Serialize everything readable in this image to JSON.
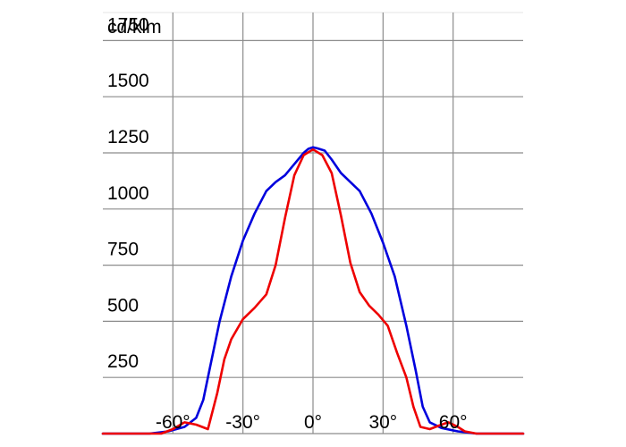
{
  "chart_data": {
    "type": "line",
    "title": "",
    "ylabel": "cd/klm",
    "xlabel": "",
    "xlim": [
      -90,
      90
    ],
    "ylim": [
      0,
      1875
    ],
    "x_ticks": [
      {
        "value": -60,
        "label": "-60°"
      },
      {
        "value": -30,
        "label": "-30°"
      },
      {
        "value": 0,
        "label": "0°"
      },
      {
        "value": 30,
        "label": "30°"
      },
      {
        "value": 60,
        "label": "60°"
      }
    ],
    "y_ticks": [
      {
        "value": 250,
        "label": "250"
      },
      {
        "value": 500,
        "label": "500"
      },
      {
        "value": 750,
        "label": "750"
      },
      {
        "value": 1000,
        "label": "1000"
      },
      {
        "value": 1250,
        "label": "1250"
      },
      {
        "value": 1500,
        "label": "1500"
      },
      {
        "value": 1750,
        "label": "1750"
      }
    ],
    "grid": true,
    "series": [
      {
        "color": "#0000dd",
        "points": [
          [
            -90,
            0
          ],
          [
            -70,
            0
          ],
          [
            -62,
            10
          ],
          [
            -55,
            30
          ],
          [
            -50,
            70
          ],
          [
            -47,
            150
          ],
          [
            -44,
            300
          ],
          [
            -40,
            500
          ],
          [
            -35,
            700
          ],
          [
            -30,
            860
          ],
          [
            -25,
            980
          ],
          [
            -20,
            1080
          ],
          [
            -16,
            1120
          ],
          [
            -12,
            1150
          ],
          [
            -8,
            1200
          ],
          [
            -4,
            1250
          ],
          [
            -2,
            1268
          ],
          [
            0,
            1275
          ],
          [
            2,
            1270
          ],
          [
            5,
            1260
          ],
          [
            8,
            1220
          ],
          [
            12,
            1160
          ],
          [
            16,
            1120
          ],
          [
            20,
            1080
          ],
          [
            25,
            980
          ],
          [
            30,
            850
          ],
          [
            35,
            700
          ],
          [
            40,
            480
          ],
          [
            44,
            280
          ],
          [
            47,
            120
          ],
          [
            50,
            50
          ],
          [
            55,
            25
          ],
          [
            62,
            10
          ],
          [
            70,
            0
          ],
          [
            90,
            0
          ]
        ]
      },
      {
        "color": "#ee0000",
        "points": [
          [
            -90,
            0
          ],
          [
            -65,
            0
          ],
          [
            -60,
            20
          ],
          [
            -55,
            50
          ],
          [
            -50,
            40
          ],
          [
            -45,
            20
          ],
          [
            -41,
            180
          ],
          [
            -38,
            330
          ],
          [
            -35,
            420
          ],
          [
            -30,
            510
          ],
          [
            -25,
            560
          ],
          [
            -20,
            620
          ],
          [
            -16,
            750
          ],
          [
            -12,
            960
          ],
          [
            -8,
            1150
          ],
          [
            -4,
            1240
          ],
          [
            0,
            1265
          ],
          [
            4,
            1240
          ],
          [
            8,
            1160
          ],
          [
            12,
            970
          ],
          [
            16,
            760
          ],
          [
            20,
            630
          ],
          [
            24,
            570
          ],
          [
            28,
            530
          ],
          [
            32,
            480
          ],
          [
            36,
            360
          ],
          [
            40,
            250
          ],
          [
            43,
            120
          ],
          [
            46,
            30
          ],
          [
            50,
            20
          ],
          [
            55,
            40
          ],
          [
            58,
            50
          ],
          [
            62,
            30
          ],
          [
            65,
            10
          ],
          [
            70,
            0
          ],
          [
            90,
            0
          ]
        ]
      }
    ]
  }
}
